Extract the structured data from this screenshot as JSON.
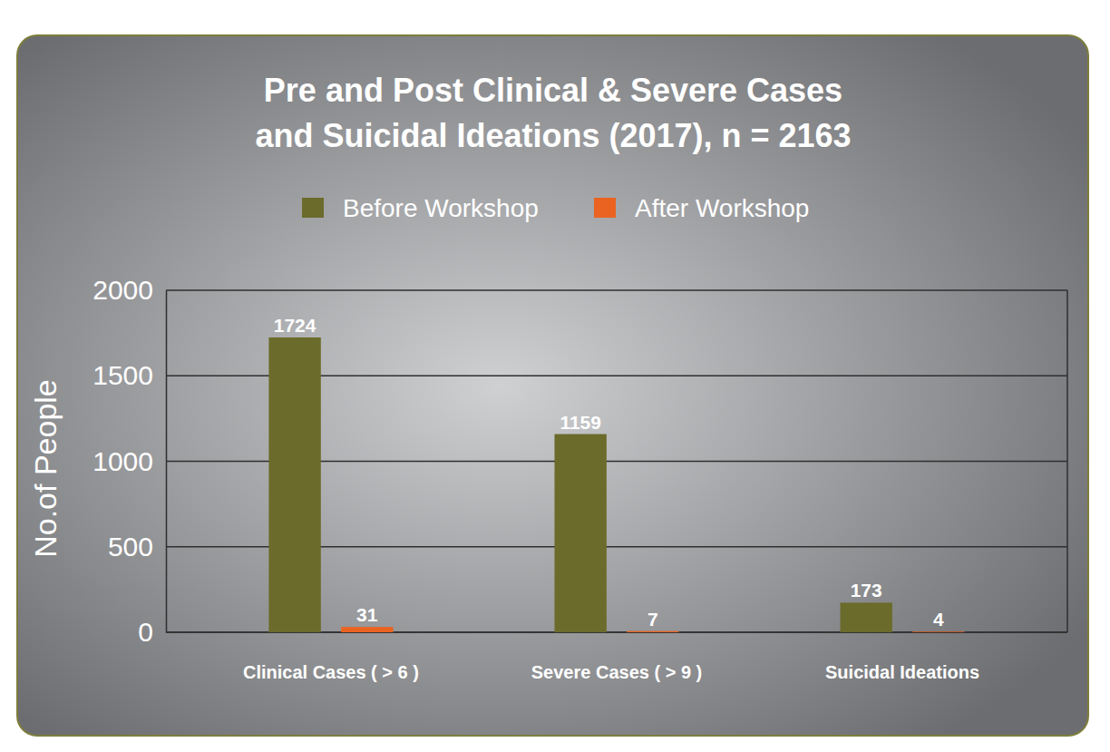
{
  "chart_data": {
    "type": "bar",
    "title": [
      "Pre and Post Clinical & Severe Cases",
      "and Suicidal Ideations (2017), n = 2163"
    ],
    "ylabel": "No.of People",
    "categories": [
      "Clinical Cases ( > 6 )",
      "Severe Cases ( > 9 )",
      "Suicidal Ideations"
    ],
    "series": [
      {
        "name": "Before Workshop",
        "color": "#6b6b2b",
        "values": [
          1724,
          1159,
          173
        ]
      },
      {
        "name": "After Workshop",
        "color": "#ea6320",
        "values": [
          31,
          7,
          4
        ]
      }
    ],
    "ylim": [
      0,
      2000
    ],
    "yticks": [
      0,
      500,
      1000,
      1500,
      2000
    ],
    "grid": true,
    "legend": "top",
    "data_labels": true
  }
}
